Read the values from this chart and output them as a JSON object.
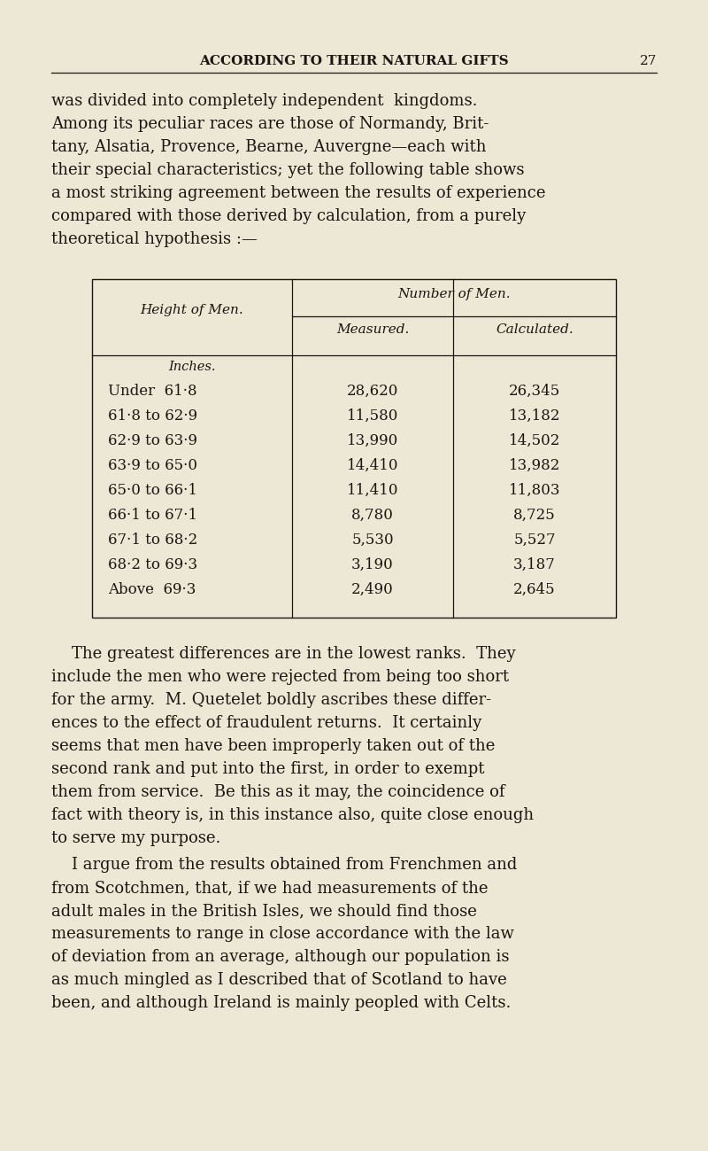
{
  "bg_color": "#ede8d5",
  "text_color": "#1a1510",
  "page_width": 8.0,
  "page_height": 12.99,
  "header_title": "ACCORDING TO THEIR NATURAL GIFTS",
  "header_page": "27",
  "para1_lines": [
    "was divided into completely independent  kingdoms.",
    "Among its peculiar races are those of Normandy, Brit-",
    "tany, Alsatia, Provence, Bearne, Auvergne—each with",
    "their special characteristics; yet the following table shows",
    "a most striking agreement between the results of experience",
    "compared with those derived by calculation, from a purely",
    "theoretical hypothesis :—"
  ],
  "table_col1_header": "Height of Men.",
  "table_num_header": "Number of Men.",
  "table_measured": "Measured.",
  "table_calculated": "Calculated.",
  "table_inches": "Inches.",
  "table_rows": [
    [
      "Under  61·8",
      "28,620",
      "26,345"
    ],
    [
      "61·8 to 62·9",
      "11,580",
      "13,182"
    ],
    [
      "62·9 to 63·9",
      "13,990",
      "14,502"
    ],
    [
      "63·9 to 65·0",
      "14,410",
      "13,982"
    ],
    [
      "65·0 to 66·1",
      "11,410",
      "11,803"
    ],
    [
      "66·1 to 67·1",
      "8,780",
      "8,725"
    ],
    [
      "67·1 to 68·2",
      "5,530",
      "5,527"
    ],
    [
      "68·2 to 69·3",
      "3,190",
      "3,187"
    ],
    [
      "Above  69·3",
      "2,490",
      "2,645"
    ]
  ],
  "para2_lines": [
    "    The greatest differences are in the lowest ranks.  They",
    "include the men who were rejected from being too short",
    "for the army.  M. Quetelet boldly ascribes these differ-",
    "ences to the effect of fraudulent returns.  It certainly",
    "seems that men have been improperly taken out of the",
    "second rank and put into the first, in order to exempt",
    "them from service.  Be this as it may, the coincidence of",
    "fact with theory is, in this instance also, quite close enough",
    "to serve my purpose."
  ],
  "para3_lines": [
    "    I argue from the results obtained from Frenchmen and",
    "from Scotchmen, that, if we had measurements of the",
    "adult males in the British Isles, we should find those",
    "measurements to range in close accordance with the law",
    "of deviation from an average, although our population is",
    "as much mingled as I described that of Scotland to have",
    "been, and although Ireland is mainly peopled with Celts."
  ],
  "font_size_header": 11,
  "font_size_body": 13,
  "font_size_table_header": 11,
  "font_size_table_body": 12
}
